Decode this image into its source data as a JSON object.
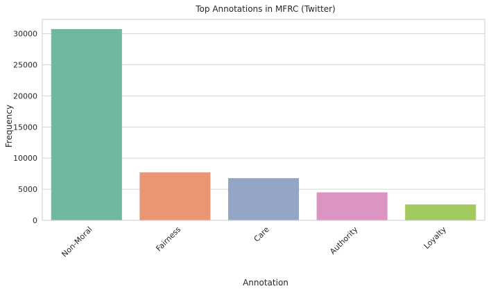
{
  "chart_data": {
    "type": "bar",
    "title": "Top Annotations in MFRC (Twitter)",
    "xlabel": "Annotation",
    "ylabel": "Frequency",
    "categories": [
      "Non-Moral",
      "Fairness",
      "Care",
      "Authority",
      "Loyalty"
    ],
    "values": [
      30750,
      7720,
      6780,
      4500,
      2550
    ],
    "colors": [
      "#72b8a0",
      "#ea9674",
      "#95a5c6",
      "#dc94c2",
      "#a3ca5e"
    ],
    "ylim": [
      0,
      32300
    ],
    "yticks": [
      0,
      5000,
      10000,
      15000,
      20000,
      25000,
      30000
    ],
    "ytick_labels": [
      "0",
      "5000",
      "10000",
      "15000",
      "20000",
      "25000",
      "30000"
    ],
    "grid": true,
    "xtick_rotation": 45,
    "style": {
      "grid_color": "#d5d5d5",
      "frame_color": "#cccccc",
      "text_color": "#262626",
      "background": "#ffffff"
    }
  }
}
